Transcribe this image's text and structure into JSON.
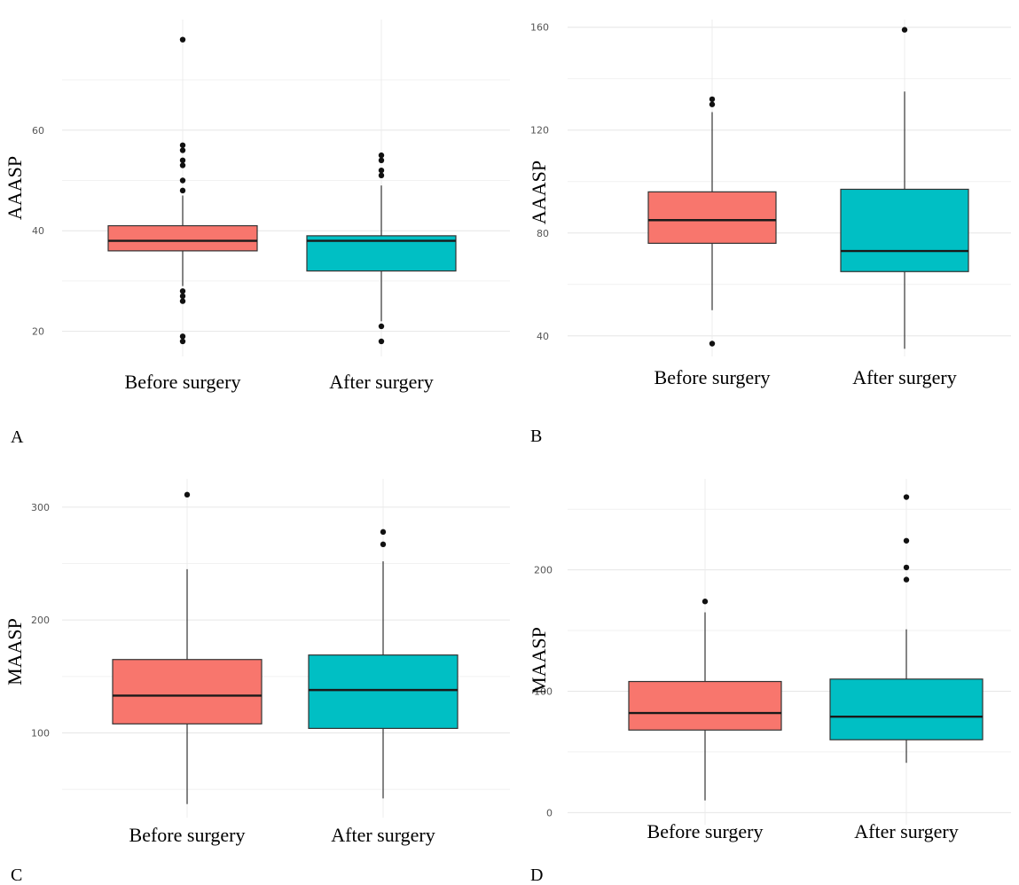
{
  "chart_data": [
    {
      "panel": "A",
      "type": "box",
      "ylabel": "AAASP",
      "ylim": [
        15,
        82
      ],
      "yticks": [
        20,
        40,
        60
      ],
      "categories": [
        "Before surgery",
        "After surgery"
      ],
      "colors": [
        "#F8766D",
        "#00BFC4"
      ],
      "boxes": [
        {
          "q1": 36,
          "median": 38,
          "q3": 41,
          "whisker_low": 29,
          "whisker_high": 47,
          "outliers": [
            18,
            19,
            26,
            27,
            28,
            48,
            50,
            53,
            54,
            56,
            57,
            78
          ]
        },
        {
          "q1": 32,
          "median": 38,
          "q3": 39,
          "whisker_low": 22,
          "whisker_high": 49,
          "outliers": [
            18,
            21,
            51,
            52,
            54,
            55
          ]
        }
      ]
    },
    {
      "panel": "B",
      "type": "box",
      "ylabel": "AAASP",
      "ylim": [
        32,
        163
      ],
      "yticks": [
        40,
        80,
        120,
        160
      ],
      "categories": [
        "Before surgery",
        "After surgery"
      ],
      "colors": [
        "#F8766D",
        "#00BFC4"
      ],
      "boxes": [
        {
          "q1": 76,
          "median": 85,
          "q3": 96,
          "whisker_low": 50,
          "whisker_high": 127,
          "outliers": [
            37,
            130,
            132
          ]
        },
        {
          "q1": 65,
          "median": 73,
          "q3": 97,
          "whisker_low": 35,
          "whisker_high": 135,
          "outliers": [
            159
          ]
        }
      ]
    },
    {
      "panel": "C",
      "type": "box",
      "ylabel": "MAASP",
      "ylim": [
        25,
        325
      ],
      "yticks": [
        100,
        200,
        300
      ],
      "categories": [
        "Before surgery",
        "After surgery"
      ],
      "colors": [
        "#F8766D",
        "#00BFC4"
      ],
      "boxes": [
        {
          "q1": 108,
          "median": 133,
          "q3": 165,
          "whisker_low": 37,
          "whisker_high": 245,
          "outliers": [
            311
          ]
        },
        {
          "q1": 104,
          "median": 138,
          "q3": 169,
          "whisker_low": 42,
          "whisker_high": 252,
          "outliers": [
            267,
            278
          ]
        }
      ]
    },
    {
      "panel": "D",
      "type": "box",
      "ylabel": "MAASP",
      "ylim": [
        -10,
        275
      ],
      "yticks": [
        0,
        100,
        200
      ],
      "categories": [
        "Before surgery",
        "After surgery"
      ],
      "colors": [
        "#F8766D",
        "#00BFC4"
      ],
      "boxes": [
        {
          "q1": 68,
          "median": 82,
          "q3": 108,
          "whisker_low": 10,
          "whisker_high": 165,
          "outliers": [
            174
          ]
        },
        {
          "q1": 60,
          "median": 79,
          "q3": 110,
          "whisker_low": 41,
          "whisker_high": 151,
          "outliers": [
            192,
            202,
            224,
            260
          ]
        }
      ]
    }
  ]
}
